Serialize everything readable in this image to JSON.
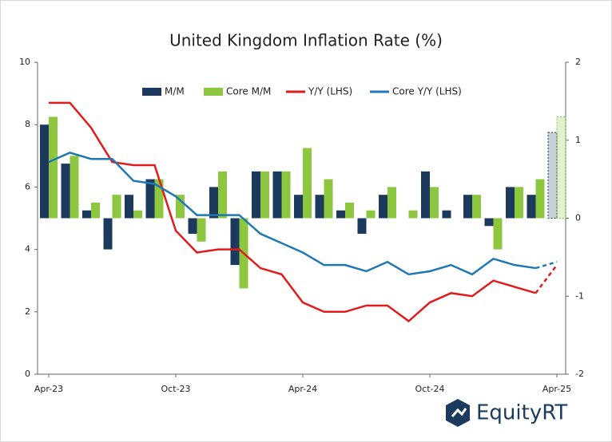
{
  "chart_data": {
    "type": "bar",
    "title": "United Kingdom Inflation Rate (%)",
    "categories": [
      "Apr-23",
      null,
      null,
      null,
      null,
      null,
      "Oct-23",
      null,
      null,
      null,
      null,
      null,
      "Apr-24",
      null,
      null,
      null,
      null,
      null,
      "Oct-24",
      null,
      null,
      null,
      null,
      null,
      "Apr-25"
    ],
    "series": [
      {
        "name": "M/M",
        "type": "bar",
        "axis": "y2",
        "color": "#1c3a5e",
        "values": [
          1.2,
          0.7,
          0.1,
          -0.4,
          0.3,
          0.5,
          0.0,
          -0.2,
          0.4,
          -0.6,
          0.6,
          0.6,
          0.3,
          0.3,
          0.1,
          -0.2,
          0.3,
          0.0,
          0.6,
          0.1,
          0.3,
          -0.1,
          0.4,
          0.3,
          1.1
        ]
      },
      {
        "name": "Core M/M",
        "type": "bar",
        "axis": "y2",
        "color": "#8dc63f",
        "values": [
          1.3,
          0.8,
          0.2,
          0.3,
          0.1,
          0.5,
          0.3,
          -0.3,
          0.6,
          -0.9,
          0.6,
          0.6,
          0.9,
          0.5,
          0.2,
          0.1,
          0.4,
          0.1,
          0.4,
          0.0,
          0.3,
          -0.4,
          0.4,
          0.5,
          1.3
        ]
      },
      {
        "name": "Y/Y (LHS)",
        "type": "line",
        "color": "#e01b1b",
        "values": [
          8.7,
          8.7,
          7.9,
          6.8,
          6.7,
          6.7,
          4.6,
          3.9,
          4.0,
          4.0,
          3.4,
          3.2,
          2.3,
          2.0,
          2.0,
          2.2,
          2.2,
          1.7,
          2.3,
          2.6,
          2.5,
          3.0,
          2.8,
          2.6,
          3.5
        ]
      },
      {
        "name": "Core Y/Y (LHS)",
        "type": "line",
        "color": "#1f78b4",
        "values": [
          6.8,
          7.1,
          6.9,
          6.9,
          6.2,
          6.1,
          5.7,
          5.1,
          5.1,
          5.1,
          4.5,
          4.2,
          3.9,
          3.5,
          3.5,
          3.3,
          3.6,
          3.2,
          3.3,
          3.5,
          3.2,
          3.7,
          3.5,
          3.4,
          3.6
        ]
      }
    ],
    "ylim": [
      0,
      10
    ],
    "yticks": [
      0,
      2,
      4,
      6,
      8,
      10
    ],
    "y2lim": [
      -2,
      2
    ],
    "y2ticks": [
      -2,
      -1,
      0,
      1,
      2
    ],
    "grid": false,
    "legend": "top",
    "logo": "EquityRT"
  }
}
